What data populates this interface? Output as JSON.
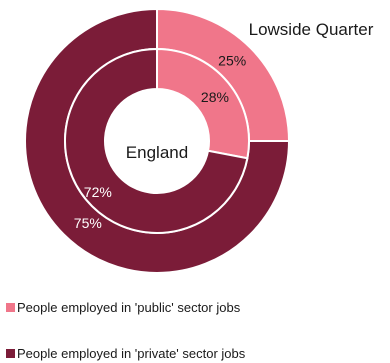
{
  "chart_data": {
    "type": "pie",
    "style": "nested-donut",
    "rings": [
      {
        "name": "Lowside Quarter",
        "position": "outer",
        "values": [
          25,
          75
        ],
        "labels": [
          "25%",
          "75%"
        ]
      },
      {
        "name": "England",
        "position": "inner",
        "values": [
          28,
          72
        ],
        "labels": [
          "28%",
          "72%"
        ]
      }
    ],
    "categories": [
      "People employed in 'public' sector jobs",
      "People employed in 'private' sector jobs"
    ],
    "colors": [
      "#f0768a",
      "#7b1c38"
    ],
    "legend": "bottom-left"
  }
}
